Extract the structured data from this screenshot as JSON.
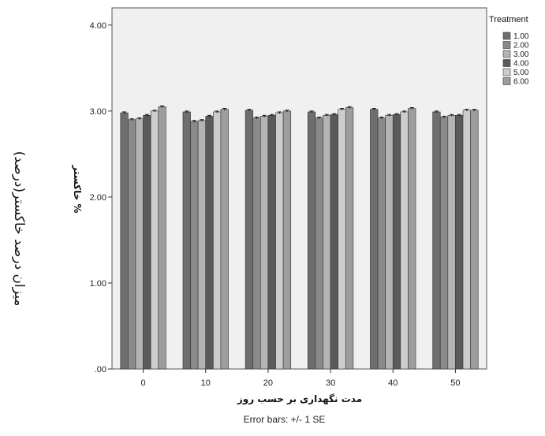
{
  "side_caption": "میزان درصد خاکستر(درصد)",
  "error_note": "Error bars: +/- 1 SE",
  "chart_data": {
    "type": "bar",
    "ylabel": "% خاکستر",
    "xlabel": "مدت نگهداری بر حسب روز",
    "categories": [
      "0",
      "10",
      "20",
      "30",
      "40",
      "50"
    ],
    "ylim": [
      0,
      4.2
    ],
    "yticks": [
      0,
      1,
      2,
      3,
      4
    ],
    "ytick_labels": [
      ".00",
      "1.00",
      "2.00",
      "3.00",
      "4.00"
    ],
    "legend_title": "Treatment",
    "legend_position": "right",
    "grid": false,
    "series": [
      {
        "name": "1.00",
        "color": "#6e6e6e",
        "values": [
          2.98,
          2.99,
          3.01,
          2.99,
          3.02,
          2.99
        ],
        "se": [
          0.01,
          0.01,
          0.01,
          0.01,
          0.01,
          0.01
        ]
      },
      {
        "name": "2.00",
        "color": "#8a8a8a",
        "values": [
          2.9,
          2.88,
          2.92,
          2.92,
          2.92,
          2.93
        ],
        "se": [
          0.01,
          0.01,
          0.01,
          0.01,
          0.01,
          0.01
        ]
      },
      {
        "name": "3.00",
        "color": "#b4b4b4",
        "values": [
          2.91,
          2.89,
          2.94,
          2.95,
          2.95,
          2.95
        ],
        "se": [
          0.01,
          0.01,
          0.01,
          0.01,
          0.01,
          0.01
        ]
      },
      {
        "name": "4.00",
        "color": "#5a5a5a",
        "values": [
          2.95,
          2.94,
          2.95,
          2.96,
          2.96,
          2.95
        ],
        "se": [
          0.01,
          0.01,
          0.01,
          0.01,
          0.01,
          0.01
        ]
      },
      {
        "name": "5.00",
        "color": "#cdcdcd",
        "values": [
          3.0,
          2.99,
          2.98,
          3.02,
          2.99,
          3.01
        ],
        "se": [
          0.01,
          0.01,
          0.01,
          0.01,
          0.01,
          0.01
        ]
      },
      {
        "name": "6.00",
        "color": "#9d9d9d",
        "values": [
          3.05,
          3.02,
          3.0,
          3.04,
          3.03,
          3.01
        ],
        "se": [
          0.01,
          0.01,
          0.01,
          0.01,
          0.01,
          0.01
        ]
      }
    ]
  }
}
